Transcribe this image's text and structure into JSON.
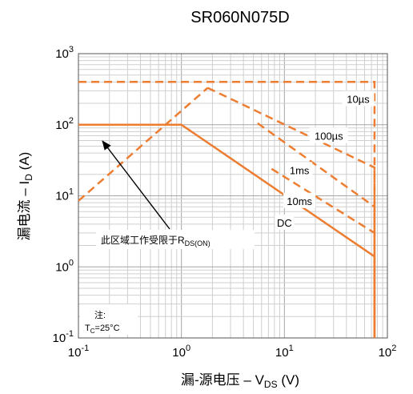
{
  "chart_data": {
    "type": "line",
    "title": "SR060N075D",
    "xlabel": {
      "main": "漏-源电压 – V",
      "sub": "DS",
      "unit": " (V)"
    },
    "ylabel": {
      "main": "漏电流 – I",
      "sub": "D",
      "unit": " (A)"
    },
    "x_scale": "log",
    "y_scale": "log",
    "xlim": [
      0.1,
      100
    ],
    "ylim": [
      0.1,
      1000
    ],
    "grid": true,
    "x_ticks": [
      {
        "value": 0.1,
        "base": "10",
        "exp": "-1"
      },
      {
        "value": 1,
        "base": "10",
        "exp": "0"
      },
      {
        "value": 10,
        "base": "10",
        "exp": "1"
      },
      {
        "value": 100,
        "base": "10",
        "exp": "2"
      }
    ],
    "y_ticks": [
      {
        "value": 0.1,
        "base": "10",
        "exp": "-1"
      },
      {
        "value": 1,
        "base": "10",
        "exp": "0"
      },
      {
        "value": 10,
        "base": "10",
        "exp": "1"
      },
      {
        "value": 100,
        "base": "10",
        "exp": "2"
      },
      {
        "value": 1000,
        "base": "10",
        "exp": "3"
      }
    ],
    "series": [
      {
        "name": "10µs",
        "style": "dashed",
        "color": "#ED7D31",
        "x": [
          0.1,
          75,
          75
        ],
        "y": [
          400,
          400,
          0.1
        ]
      },
      {
        "name": "100µs",
        "style": "dashed",
        "color": "#ED7D31",
        "x": [
          1.8,
          75,
          75
        ],
        "y": [
          330,
          25,
          0.1
        ]
      },
      {
        "name": "1ms",
        "style": "dashed",
        "color": "#ED7D31",
        "x": [
          5.5,
          75,
          75
        ],
        "y": [
          105,
          7,
          0.1
        ]
      },
      {
        "name": "10ms",
        "style": "dashed",
        "color": "#ED7D31",
        "x": [
          7.5,
          75
        ],
        "y": [
          24,
          3
        ]
      },
      {
        "name": "RDS(on) limit",
        "style": "dashed",
        "color": "#ED7D31",
        "x": [
          0.1,
          1.8
        ],
        "y": [
          8.5,
          330
        ]
      },
      {
        "name": "DC",
        "style": "solid",
        "color": "#ED7D31",
        "x": [
          0.1,
          1,
          75,
          75
        ],
        "y": [
          100,
          100,
          1.4,
          0.1
        ]
      }
    ],
    "series_labels": [
      {
        "text": "10µs",
        "x": 52,
        "y": 230
      },
      {
        "text": "100µs",
        "x": 27,
        "y": 70
      },
      {
        "text": "1ms",
        "x": 14,
        "y": 23
      },
      {
        "text": "10ms",
        "x": 14,
        "y": 8.5
      },
      {
        "text": "DC",
        "x": 10,
        "y": 4.2
      }
    ],
    "annotations": {
      "rds_note": {
        "main": "此区域工作受限于R",
        "sub": "DS(ON)"
      },
      "note_title": "注:",
      "note_text": {
        "main": "T",
        "sub": "C",
        "rest": "=25°C"
      }
    }
  }
}
